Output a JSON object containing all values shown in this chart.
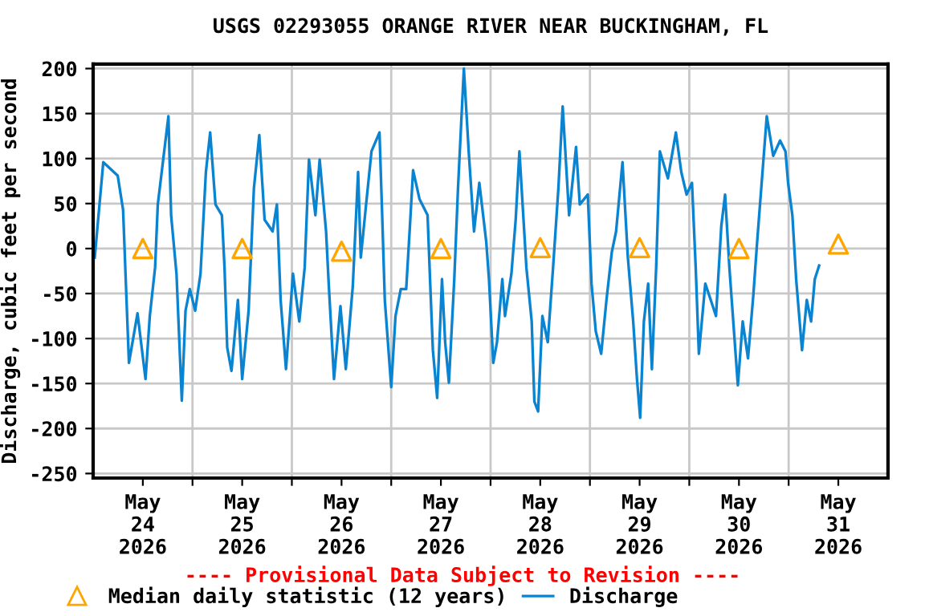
{
  "chart_data": {
    "type": "line",
    "title": "USGS 02293055 ORANGE RIVER NEAR BUCKINGHAM, FL",
    "ylabel": "Discharge, cubic feet per second",
    "annotations": [
      "---- Provisional Data Subject to Revision ----"
    ],
    "xlim": [
      "2026-05-23T12:00",
      "2026-05-31T12:00"
    ],
    "xticks": [
      {
        "value": "2026-05-24",
        "label": "May\n24\n2026"
      },
      {
        "value": "2026-05-24T12:00",
        "label": null
      },
      {
        "value": "2026-05-25",
        "label": "May\n25\n2026"
      },
      {
        "value": "2026-05-25T12:00",
        "label": null
      },
      {
        "value": "2026-05-26",
        "label": "May\n26\n2026"
      },
      {
        "value": "2026-05-26T12:00",
        "label": null
      },
      {
        "value": "2026-05-27",
        "label": "May\n27\n2026"
      },
      {
        "value": "2026-05-27T12:00",
        "label": null
      },
      {
        "value": "2026-05-28",
        "label": "May\n28\n2026"
      },
      {
        "value": "2026-05-28T12:00",
        "label": null
      },
      {
        "value": "2026-05-29",
        "label": "May\n29\n2026"
      },
      {
        "value": "2026-05-29T12:00",
        "label": null
      },
      {
        "value": "2026-05-30",
        "label": "May\n30\n2026"
      },
      {
        "value": "2026-05-30T12:00",
        "label": null
      },
      {
        "value": "2026-05-31",
        "label": "May\n31\n2026"
      }
    ],
    "ylim": [
      -255,
      205
    ],
    "yticks": [
      -250,
      -200,
      -150,
      -100,
      -50,
      0,
      50,
      100,
      150,
      200
    ],
    "grid": true,
    "legend": "bottom",
    "series": [
      {
        "name": "Median daily statistic (12 years)",
        "type": "scatter",
        "marker": "triangle",
        "color": "#ffa500",
        "x": [
          "2026-05-24",
          "2026-05-25",
          "2026-05-26",
          "2026-05-27",
          "2026-05-28",
          "2026-05-29",
          "2026-05-30",
          "2026-05-31"
        ],
        "values": [
          0,
          0,
          -3,
          0,
          1,
          1,
          0,
          5
        ]
      },
      {
        "name": "Discharge",
        "color": "#0a84d0",
        "x": [
          "2026-05-23T12:23",
          "2026-05-23T14:27",
          "2026-05-23T17:56",
          "2026-05-23T19:14",
          "2026-05-23T19:52",
          "2026-05-23T20:39",
          "2026-05-23T22:43",
          "2026-05-24T00:39",
          "2026-05-24T01:41",
          "2026-05-24T02:58",
          "2026-05-24T03:37",
          "2026-05-24T06:11",
          "2026-05-24T06:50",
          "2026-05-24T08:08",
          "2026-05-24T09:25",
          "2026-05-24T10:19",
          "2026-05-24T11:21",
          "2026-05-24T12:39",
          "2026-05-24T13:56",
          "2026-05-24T15:14",
          "2026-05-24T16:16",
          "2026-05-24T17:33",
          "2026-05-24T19:06",
          "2026-05-24T19:44",
          "2026-05-24T20:23",
          "2026-05-24T21:25",
          "2026-05-24T22:58",
          "2026-05-25T00:00",
          "2026-05-25T01:33",
          "2026-05-25T02:50",
          "2026-05-25T04:08",
          "2026-05-25T05:25",
          "2026-05-25T07:21",
          "2026-05-25T08:23",
          "2026-05-25T09:17",
          "2026-05-25T10:35",
          "2026-05-25T12:16",
          "2026-05-25T13:48",
          "2026-05-25T15:06",
          "2026-05-25T16:08",
          "2026-05-25T17:41",
          "2026-05-25T18:43",
          "2026-05-25T20:16",
          "2026-05-25T20:54",
          "2026-05-25T22:11",
          "2026-05-25T23:44",
          "2026-05-26T01:02",
          "2026-05-26T02:43",
          "2026-05-26T04:00",
          "2026-05-26T04:39",
          "2026-05-26T05:56",
          "2026-05-26T07:14",
          "2026-05-26T09:10",
          "2026-05-26T09:49",
          "2026-05-26T10:27",
          "2026-05-26T12:00",
          "2026-05-26T13:02",
          "2026-05-26T14:19",
          "2026-05-26T15:37",
          "2026-05-26T16:31",
          "2026-05-26T17:17",
          "2026-05-26T18:50",
          "2026-05-26T20:47",
          "2026-05-26T21:25",
          "2026-05-26T22:04",
          "2026-05-26T23:06",
          "2026-05-27T00:16",
          "2026-05-27T01:02",
          "2026-05-27T01:56",
          "2026-05-27T03:14",
          "2026-05-27T04:08",
          "2026-05-27T05:33",
          "2026-05-27T06:43",
          "2026-05-27T08:00",
          "2026-05-27T09:17",
          "2026-05-27T10:58",
          "2026-05-27T11:37",
          "2026-05-27T12:39",
          "2026-05-27T13:33",
          "2026-05-27T14:50",
          "2026-05-27T15:29",
          "2026-05-27T17:02",
          "2026-05-27T18:04",
          "2026-05-27T18:58",
          "2026-05-27T20:39",
          "2026-05-27T21:56",
          "2026-05-27T22:35",
          "2026-05-27T23:29",
          "2026-05-28T00:31",
          "2026-05-28T01:49",
          "2026-05-28T03:06",
          "2026-05-28T04:23",
          "2026-05-28T05:25",
          "2026-05-28T06:58",
          "2026-05-28T08:39",
          "2026-05-28T09:33",
          "2026-05-28T11:29",
          "2026-05-28T12:23",
          "2026-05-28T13:25",
          "2026-05-28T14:43",
          "2026-05-28T16:00",
          "2026-05-28T17:17",
          "2026-05-28T18:19",
          "2026-05-28T19:52",
          "2026-05-28T21:10",
          "2026-05-28T22:27",
          "2026-05-28T23:22",
          "2026-05-29T00:08",
          "2026-05-29T01:02",
          "2026-05-29T02:04",
          "2026-05-29T02:58",
          "2026-05-29T04:00",
          "2026-05-29T04:54",
          "2026-05-29T06:50",
          "2026-05-29T08:46",
          "2026-05-29T10:04",
          "2026-05-29T11:21",
          "2026-05-29T12:39",
          "2026-05-29T13:33",
          "2026-05-29T14:19",
          "2026-05-29T15:52",
          "2026-05-29T17:10",
          "2026-05-29T18:27",
          "2026-05-29T19:44",
          "2026-05-29T20:39",
          "2026-05-29T21:41",
          "2026-05-29T22:43",
          "2026-05-29T23:44",
          "2026-05-30T00:54",
          "2026-05-30T02:11",
          "2026-05-30T03:29",
          "2026-05-30T04:23",
          "2026-05-30T05:41",
          "2026-05-30T06:43",
          "2026-05-30T08:16",
          "2026-05-30T09:56",
          "2026-05-30T11:14",
          "2026-05-30T11:52",
          "2026-05-30T12:54",
          "2026-05-30T13:49",
          "2026-05-30T15:14",
          "2026-05-30T16:23",
          "2026-05-30T17:25",
          "2026-05-30T18:19",
          "2026-05-30T19:22"
        ],
        "values": [
          -10,
          96,
          81,
          43,
          -34,
          -127,
          -72,
          -145,
          -75,
          -21,
          49,
          147,
          37,
          -28,
          -169,
          -69,
          -45,
          -69,
          -28,
          85,
          129,
          49,
          37,
          -21,
          -110,
          -136,
          -57,
          -145,
          -69,
          67,
          126,
          32,
          19,
          49,
          -57,
          -134,
          -28,
          -81,
          -21,
          99,
          37,
          99,
          19,
          -39,
          -145,
          -64,
          -134,
          -42,
          85,
          -10,
          49,
          108,
          129,
          37,
          -57,
          -154,
          -75,
          -45,
          -45,
          25,
          87,
          55,
          37,
          -39,
          -113,
          -166,
          -34,
          -104,
          -149,
          -34,
          67,
          200,
          108,
          19,
          73,
          7,
          -34,
          -127,
          -104,
          -34,
          -75,
          -28,
          32,
          108,
          -21,
          -81,
          -170,
          -181,
          -75,
          -104,
          -21,
          67,
          158,
          37,
          113,
          49,
          60,
          -39,
          -92,
          -117,
          -57,
          -4,
          19,
          96,
          -10,
          -81,
          -145,
          -188,
          -81,
          -39,
          -134,
          -21,
          108,
          78,
          129,
          85,
          60,
          73,
          -21,
          -117,
          -39,
          -57,
          -75,
          25,
          60,
          -21,
          -87,
          -152,
          -81,
          -122,
          -51,
          7,
          85,
          147,
          103,
          120,
          108,
          73,
          37,
          -34,
          -113,
          -57,
          -81,
          -34,
          -19
        ]
      }
    ]
  }
}
